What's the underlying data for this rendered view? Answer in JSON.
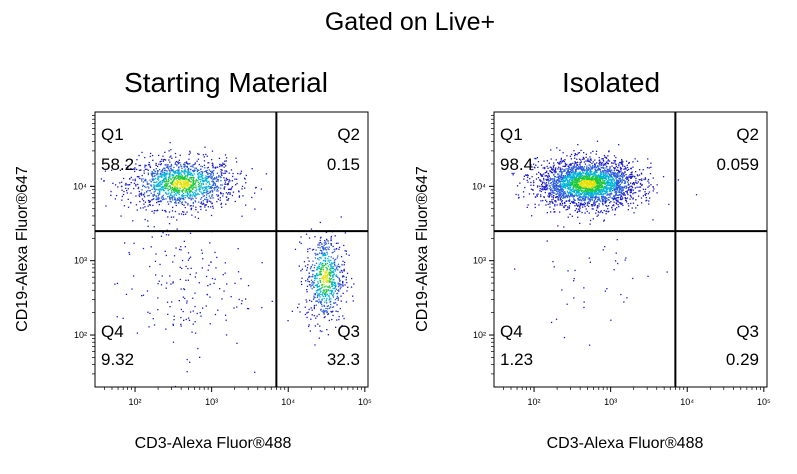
{
  "figure_title": "Gated on Live+",
  "chart_data": [
    {
      "type": "scatter",
      "title": "Starting Material",
      "xlabel": "CD3-Alexa Fluor®488",
      "ylabel": "CD19-Alexa Fluor®647",
      "x_scale": "log",
      "y_scale": "log",
      "xlim": [
        30,
        110000
      ],
      "ylim": [
        20,
        100000
      ],
      "x_ticks": [
        "10²",
        "10³",
        "10⁴",
        "10⁵"
      ],
      "y_ticks": [
        "10²",
        "10³",
        "10⁴"
      ],
      "gate_x": 7000,
      "gate_y": 2500,
      "quadrants": [
        {
          "name": "Q1",
          "percent": "58.2"
        },
        {
          "name": "Q2",
          "percent": "0.15"
        },
        {
          "name": "Q3",
          "percent": "32.3"
        },
        {
          "name": "Q4",
          "percent": "9.32"
        }
      ],
      "populations": [
        {
          "x": 400,
          "y": 11000,
          "sx": 0.35,
          "sy": 0.17,
          "n": 1400
        },
        {
          "x": 30000,
          "y": 600,
          "sx": 0.13,
          "sy": 0.3,
          "n": 650
        },
        {
          "x": 400,
          "y": 450,
          "sx": 0.42,
          "sy": 0.45,
          "n": 180
        }
      ]
    },
    {
      "type": "scatter",
      "title": "Isolated",
      "xlabel": "CD3-Alexa Fluor®488",
      "ylabel": "CD19-Alexa Fluor®647",
      "x_scale": "log",
      "y_scale": "log",
      "xlim": [
        30,
        110000
      ],
      "ylim": [
        20,
        100000
      ],
      "x_ticks": [
        "10²",
        "10³",
        "10⁴",
        "10⁵"
      ],
      "y_ticks": [
        "10²",
        "10³",
        "10⁴"
      ],
      "gate_x": 7000,
      "gate_y": 2500,
      "quadrants": [
        {
          "name": "Q1",
          "percent": "98.4"
        },
        {
          "name": "Q2",
          "percent": "0.059"
        },
        {
          "name": "Q3",
          "percent": "0.29"
        },
        {
          "name": "Q4",
          "percent": "1.23"
        }
      ],
      "populations": [
        {
          "x": 500,
          "y": 11000,
          "sx": 0.33,
          "sy": 0.16,
          "n": 2600
        },
        {
          "x": 600,
          "y": 600,
          "sx": 0.45,
          "sy": 0.4,
          "n": 40
        }
      ]
    }
  ]
}
